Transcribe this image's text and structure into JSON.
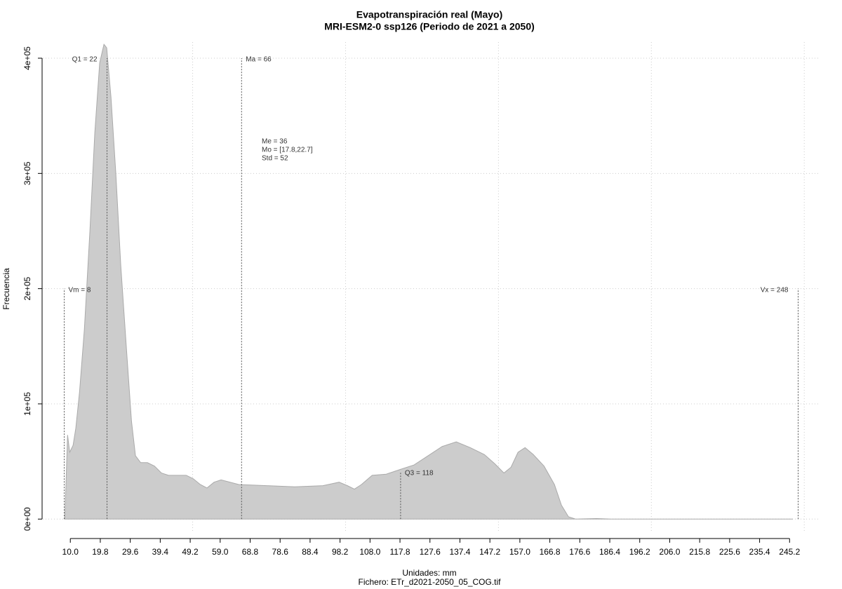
{
  "chart_data": {
    "type": "area",
    "title": "Evapotranspiración real (Mayo)",
    "subtitle": "MRI-ESM2-0 ssp126 (Periodo de 2021 a 2050)",
    "x_label": "Unidades: mm",
    "caption": "Fichero: ETr_d2021-2050_05_COG.tif",
    "y_label": "Frecuencia",
    "color": "#cccccc",
    "x": [
      8.2,
      9.1,
      9.8,
      10.9,
      11.8,
      13.0,
      14.6,
      16.4,
      18.0,
      19.6,
      21.0,
      21.9,
      23.3,
      24.9,
      26.5,
      28.4,
      30.0,
      31.3,
      33.0,
      35.2,
      37.5,
      39.8,
      42.1,
      47.9,
      50.2,
      52.5,
      54.7,
      57.0,
      59.3,
      65.1,
      74.2,
      83.4,
      92.6,
      97.9,
      100.6,
      102.9,
      105.2,
      108.7,
      113.3,
      117.8,
      122.4,
      127.0,
      131.6,
      136.2,
      140.8,
      145.4,
      148.8,
      151.8,
      154.1,
      156.4,
      158.7,
      161.4,
      164.9,
      168.3,
      170.6,
      172.9,
      175.2,
      182.1,
      186.7,
      246.3
    ],
    "values": [
      0,
      73000,
      58000,
      64000,
      79000,
      110000,
      165000,
      250000,
      335000,
      396000,
      412000,
      409000,
      366000,
      299000,
      220000,
      146000,
      85000,
      55000,
      49000,
      49000,
      46000,
      40000,
      38000,
      38000,
      35000,
      30000,
      27000,
      32000,
      34000,
      30000,
      29000,
      28000,
      29000,
      32000,
      29000,
      26000,
      30000,
      38000,
      39000,
      43000,
      47000,
      55000,
      63000,
      67000,
      62000,
      56000,
      48000,
      40000,
      45000,
      58000,
      62000,
      56000,
      46000,
      30000,
      12000,
      2000,
      0,
      500,
      0,
      0
    ],
    "xlim": [
      1,
      255
    ],
    "ylim": [
      -12000,
      414000
    ],
    "xticks": [
      {
        "value": 10.0,
        "label": "10.0"
      },
      {
        "value": 19.8,
        "label": "19.8"
      },
      {
        "value": 29.6,
        "label": "29.6"
      },
      {
        "value": 39.4,
        "label": "39.4"
      },
      {
        "value": 49.2,
        "label": "49.2"
      },
      {
        "value": 59.0,
        "label": "59.0"
      },
      {
        "value": 68.8,
        "label": "68.8"
      },
      {
        "value": 78.6,
        "label": "78.6"
      },
      {
        "value": 88.4,
        "label": "88.4"
      },
      {
        "value": 98.2,
        "label": "98.2"
      },
      {
        "value": 108.0,
        "label": "108.0"
      },
      {
        "value": 117.8,
        "label": "117.8"
      },
      {
        "value": 127.6,
        "label": "127.6"
      },
      {
        "value": 137.4,
        "label": "137.4"
      },
      {
        "value": 147.2,
        "label": "147.2"
      },
      {
        "value": 157.0,
        "label": "157.0"
      },
      {
        "value": 166.8,
        "label": "166.8"
      },
      {
        "value": 176.6,
        "label": "176.6"
      },
      {
        "value": 186.4,
        "label": "186.4"
      },
      {
        "value": 196.2,
        "label": "196.2"
      },
      {
        "value": 206.0,
        "label": "206.0"
      },
      {
        "value": 215.8,
        "label": "215.8"
      },
      {
        "value": 225.6,
        "label": "225.6"
      },
      {
        "value": 235.4,
        "label": "235.4"
      },
      {
        "value": 245.2,
        "label": "245.2"
      }
    ],
    "yticks": [
      {
        "value": 0,
        "label": "0e+00"
      },
      {
        "value": 100000,
        "label": "1e+05"
      },
      {
        "value": 200000,
        "label": "2e+05"
      },
      {
        "value": 300000,
        "label": "3e+05"
      },
      {
        "value": 400000,
        "label": "4e+05"
      }
    ],
    "x_grid": [
      50,
      100,
      150,
      200,
      250
    ],
    "grid": true,
    "markers": [
      {
        "label": "Vm = 8",
        "x": 8,
        "y": 200000
      },
      {
        "label": "Q1 = 22",
        "x": 22,
        "y": 400000
      },
      {
        "label": "Ma = 66",
        "x": 66,
        "y": 400000
      },
      {
        "label": "Q3 = 118",
        "x": 118,
        "y": 41000
      },
      {
        "label": "Vx = 248",
        "x": 248,
        "y": 200000
      }
    ],
    "stats": [
      "Me = 36",
      "Mo = [17.8,22.7]",
      "Std = 52"
    ]
  }
}
